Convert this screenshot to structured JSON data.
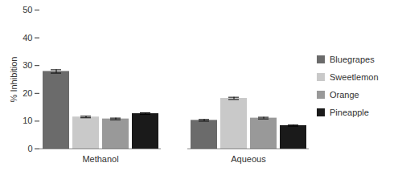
{
  "chart_data": {
    "type": "bar",
    "categories": [
      "Methanol",
      "Aqueous"
    ],
    "series": [
      {
        "name": "Bluegrapes",
        "color": "#6b6b6b",
        "values": [
          27.9,
          10.3
        ],
        "errors": [
          0.6,
          0.3
        ]
      },
      {
        "name": "Sweetlemon",
        "color": "#c9c9c9",
        "values": [
          11.5,
          18.2
        ],
        "errors": [
          0.3,
          0.4
        ]
      },
      {
        "name": "Orange",
        "color": "#999999",
        "values": [
          10.8,
          11.1
        ],
        "errors": [
          0.3,
          0.3
        ]
      },
      {
        "name": "Pineapple",
        "color": "#1a1a1a",
        "values": [
          12.7,
          8.4
        ],
        "errors": [
          0.3,
          0.2
        ]
      }
    ],
    "y_label": "% Inhibition",
    "ylim": [
      0,
      50
    ],
    "yticks": [
      0,
      10,
      20,
      30,
      40,
      50
    ],
    "legend": "right"
  }
}
